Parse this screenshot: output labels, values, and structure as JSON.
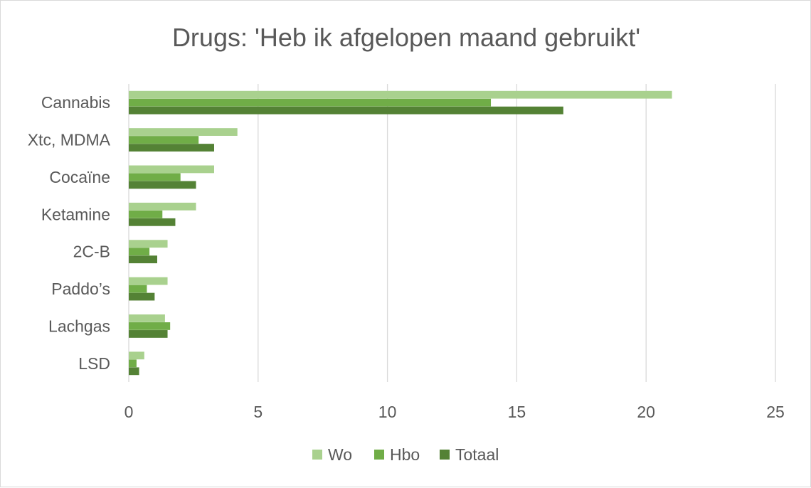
{
  "chart_data": {
    "type": "bar",
    "orientation": "horizontal",
    "title": "Drugs: 'Heb ik afgelopen maand gebruikt'",
    "categories": [
      "Cannabis",
      "Xtc, MDMA",
      "Cocaïne",
      "Ketamine",
      "2C-B",
      "Paddo’s",
      "Lachgas",
      "LSD"
    ],
    "series": [
      {
        "name": "Wo",
        "color": "#a9d18e",
        "values": [
          21.0,
          4.2,
          3.3,
          2.6,
          1.5,
          1.5,
          1.4,
          0.6
        ]
      },
      {
        "name": "Hbo",
        "color": "#70ad47",
        "values": [
          14.0,
          2.7,
          2.0,
          1.3,
          0.8,
          0.7,
          1.6,
          0.3
        ]
      },
      {
        "name": "Totaal",
        "color": "#548235",
        "values": [
          16.8,
          3.3,
          2.6,
          1.8,
          1.1,
          1.0,
          1.5,
          0.4
        ]
      }
    ],
    "xlim": [
      0,
      25
    ],
    "xticks": [
      "0",
      "5",
      "10",
      "15",
      "20",
      "25"
    ],
    "xlabel": "",
    "ylabel": "",
    "grid": "vertical",
    "legend_position": "bottom"
  }
}
